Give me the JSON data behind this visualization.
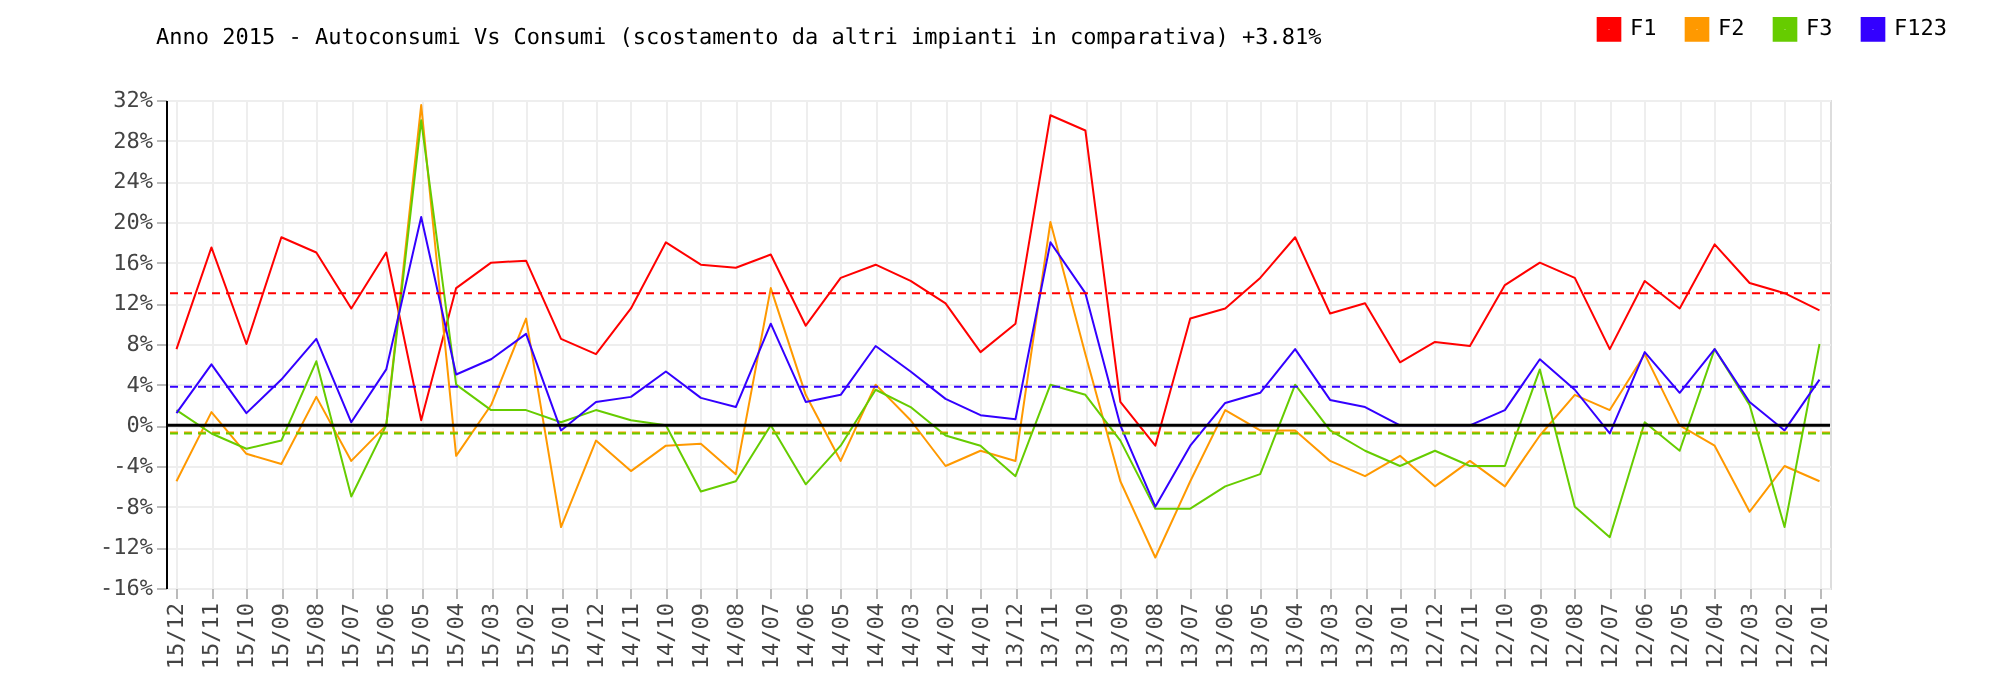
{
  "chart_data": {
    "type": "line",
    "title": "Anno 2015 - Autoconsumi Vs Consumi (scostamento da altri impianti in comparativa) +3.81%",
    "categories": [
      "15/12",
      "15/11",
      "15/10",
      "15/09",
      "15/08",
      "15/07",
      "15/06",
      "15/05",
      "15/04",
      "15/03",
      "15/02",
      "15/01",
      "14/12",
      "14/11",
      "14/10",
      "14/09",
      "14/08",
      "14/07",
      "14/06",
      "14/05",
      "14/04",
      "14/03",
      "14/02",
      "14/01",
      "13/12",
      "13/11",
      "13/10",
      "13/09",
      "13/08",
      "13/07",
      "13/06",
      "13/05",
      "13/04",
      "13/03",
      "13/02",
      "13/01",
      "12/12",
      "12/11",
      "12/10",
      "12/09",
      "12/08",
      "12/07",
      "12/06",
      "12/05",
      "12/04",
      "12/03",
      "12/02",
      "12/01"
    ],
    "series": [
      {
        "name": "F1",
        "color": "#ff0000",
        "values": [
          7.5,
          17.5,
          8,
          18.5,
          17,
          11.5,
          17,
          0.5,
          13.5,
          16,
          16.2,
          8.5,
          7,
          11.5,
          18,
          15.8,
          15.5,
          16.8,
          9.8,
          14.5,
          15.8,
          14.2,
          12,
          7.2,
          10,
          30.5,
          29,
          2.3,
          -2,
          10.5,
          11.5,
          14.5,
          18.5,
          11,
          12,
          6.2,
          8.2,
          7.8,
          13.8,
          16,
          14.5,
          7.5,
          14.2,
          11.5,
          17.8,
          14,
          13,
          11.3
        ]
      },
      {
        "name": "F2",
        "color": "#ff9900",
        "values": [
          -5.5,
          1.3,
          -2.8,
          -3.8,
          2.8,
          -3.5,
          0,
          31.5,
          -3,
          2,
          10.5,
          -10,
          -1.5,
          -4.5,
          -2,
          -1.8,
          -4.8,
          13.5,
          3,
          -3.5,
          4,
          0.5,
          -4,
          -2.5,
          -3.5,
          20,
          7,
          -5.5,
          -13,
          -5.5,
          1.5,
          -0.5,
          -0.5,
          -3.5,
          -5,
          -3,
          -6,
          -3.5,
          -6,
          -1,
          3,
          1.5,
          7,
          0,
          -2,
          -8.5,
          -4,
          -5.5
        ]
      },
      {
        "name": "F3",
        "color": "#66cc00",
        "values": [
          1.5,
          -0.8,
          -2.3,
          -1.5,
          6.3,
          -7,
          0,
          30,
          4,
          1.5,
          1.5,
          0.3,
          1.5,
          0.5,
          0,
          -6.5,
          -5.5,
          0,
          -5.8,
          -2,
          3.5,
          1.8,
          -1,
          -2,
          -5,
          4,
          3,
          -1.5,
          -8.2,
          -8.2,
          -6,
          -4.8,
          4,
          -0.5,
          -2.5,
          -4,
          -2.5,
          -4,
          -4,
          5.5,
          -8,
          -11,
          0.3,
          -2.5,
          7.5,
          2,
          -10,
          8
        ]
      },
      {
        "name": "F123",
        "color": "#3300ff",
        "values": [
          1.2,
          6,
          1.2,
          4.5,
          8.5,
          0.3,
          5.5,
          20.5,
          5,
          6.5,
          9,
          -0.5,
          2.3,
          2.8,
          5.3,
          2.7,
          1.8,
          10,
          2.3,
          3,
          7.8,
          5.3,
          2.6,
          1,
          0.6,
          18,
          13,
          0,
          -8,
          -2,
          2.2,
          3.2,
          7.5,
          2.5,
          1.8,
          0,
          0,
          0,
          1.5,
          6.5,
          3.5,
          -0.8,
          7.2,
          3.2,
          7.5,
          2.3,
          -0.5,
          4.5
        ]
      }
    ],
    "ylim": [
      -16,
      32
    ],
    "yticks": [
      {
        "value": -16,
        "label": "-16%"
      },
      {
        "value": -12,
        "label": "-12%"
      },
      {
        "value": -8,
        "label": "-8%"
      },
      {
        "value": -4,
        "label": "-4%"
      },
      {
        "value": 0,
        "label": "0%"
      },
      {
        "value": 4,
        "label": "4%"
      },
      {
        "value": 8,
        "label": "8%"
      },
      {
        "value": 12,
        "label": "12%"
      },
      {
        "value": 16,
        "label": "16%"
      },
      {
        "value": 20,
        "label": "20%"
      },
      {
        "value": 24,
        "label": "24%"
      },
      {
        "value": 28,
        "label": "28%"
      },
      {
        "value": 32,
        "label": "32%"
      }
    ],
    "ref_lines": [
      {
        "axis": "y",
        "value": 13,
        "color": "#ff0000",
        "line_style": "dashed"
      },
      {
        "axis": "y",
        "value": 3.8,
        "color": "#3300ff",
        "line_style": "dashed"
      },
      {
        "axis": "y",
        "value": -0.7,
        "color": "#ff9900",
        "line_style": "dashed"
      },
      {
        "axis": "y",
        "value": -0.8,
        "color": "#66cc00",
        "line_style": "dashed"
      },
      {
        "axis": "y",
        "value": 0,
        "color": "#000000",
        "line_style": "solid"
      }
    ],
    "grid": true,
    "legend": "top right",
    "marker": "none",
    "line_style": "solid"
  }
}
